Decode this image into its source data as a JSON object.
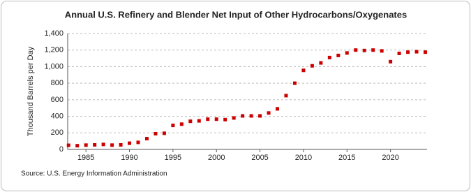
{
  "chart_data": {
    "type": "scatter",
    "title": "Annual U.S. Refinery and Blender Net Input of Other Hydrocarbons/Oxygenates",
    "y_label": "Thousand Barrels per Day",
    "source": "Source: U.S. Energy Information Administration",
    "x": [
      1983,
      1984,
      1985,
      1986,
      1987,
      1988,
      1989,
      1990,
      1991,
      1992,
      1993,
      1994,
      1995,
      1996,
      1997,
      1998,
      1999,
      2000,
      2001,
      2002,
      2003,
      2004,
      2005,
      2006,
      2007,
      2008,
      2009,
      2010,
      2011,
      2012,
      2013,
      2014,
      2015,
      2016,
      2017,
      2018,
      2019,
      2020,
      2021,
      2022,
      2023,
      2024
    ],
    "series": [
      {
        "name": "Net Input",
        "color": "#cc0000",
        "values": [
          50,
          45,
          52,
          55,
          60,
          52,
          55,
          75,
          85,
          130,
          190,
          195,
          290,
          305,
          340,
          345,
          365,
          365,
          360,
          380,
          405,
          405,
          405,
          440,
          490,
          650,
          800,
          955,
          1010,
          1045,
          1110,
          1135,
          1165,
          1200,
          1195,
          1200,
          1190,
          1060,
          1160,
          1175,
          1180,
          1175
        ]
      }
    ],
    "xlim": [
      1982.9,
      2024.2
    ],
    "xticks": [
      1985,
      1990,
      1995,
      2000,
      2005,
      2010,
      2015,
      2020
    ],
    "ylim": [
      0,
      1400
    ],
    "yticks": [
      0,
      200,
      400,
      600,
      800,
      {
        "value": 1000,
        "label": "1,000"
      },
      {
        "value": 1200,
        "label": "1,200"
      },
      {
        "value": 1400,
        "label": "1,400"
      }
    ],
    "grid": true
  }
}
